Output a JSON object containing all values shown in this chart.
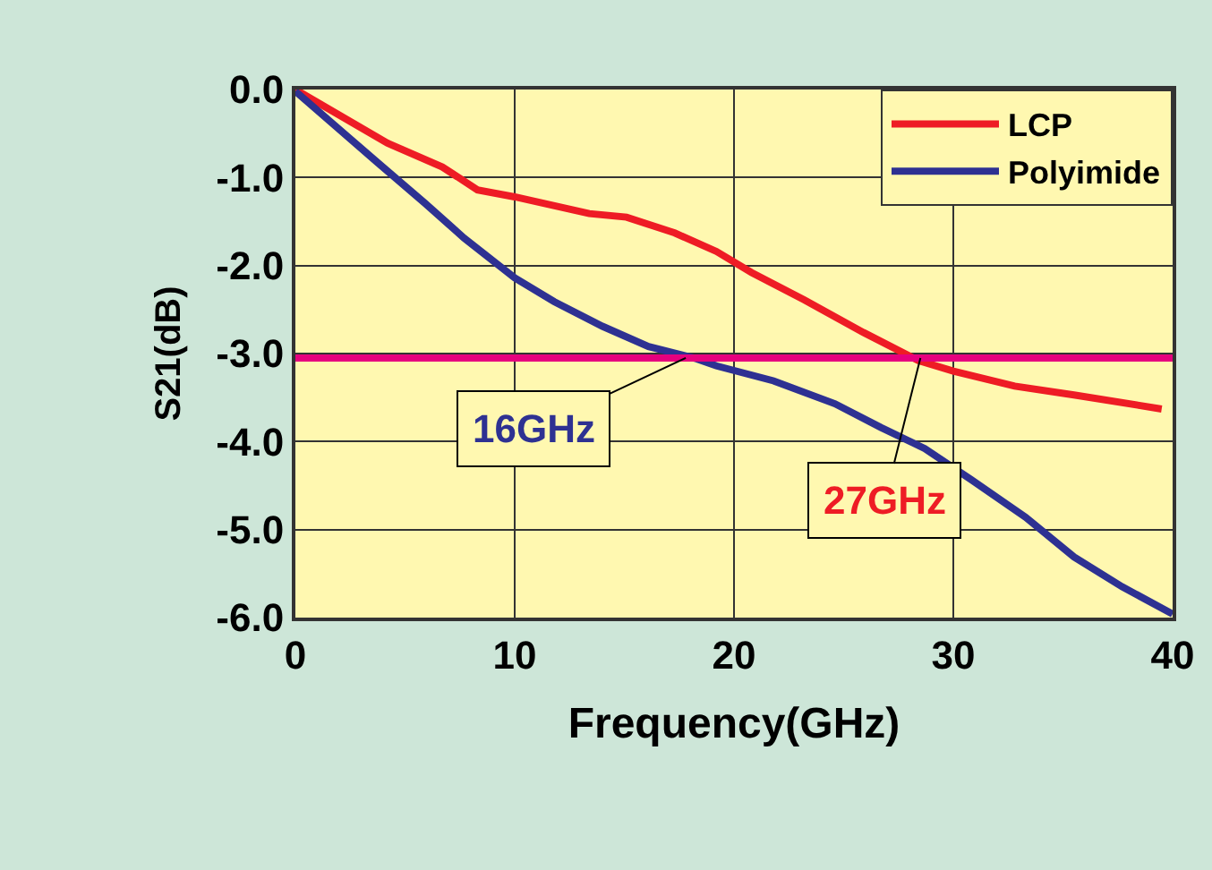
{
  "chart_data": {
    "type": "line",
    "xlabel": "Frequency(GHz)",
    "ylabel": "S21(dB)",
    "xlim": [
      0,
      40
    ],
    "xticks": [
      0,
      10,
      20,
      30,
      40
    ],
    "ylim": [
      -6,
      0
    ],
    "yticks": [
      {
        "value": 0,
        "label": "0.0"
      },
      {
        "value": -1,
        "label": "-1.0"
      },
      {
        "value": -2,
        "label": "-2.0"
      },
      {
        "value": -3,
        "label": "-3.0"
      },
      {
        "value": -4,
        "label": "-4.0"
      },
      {
        "value": -5,
        "label": "-5.0"
      },
      {
        "value": -6,
        "label": "-6.0"
      }
    ],
    "grid": true,
    "legend": "top right",
    "marker": "none",
    "line_style": "solid",
    "series": [
      {
        "name": "LCP",
        "color": "#ee1c25",
        "x": [
          0,
          4.2,
          6.7,
          8.3,
          10,
          13.4,
          15.1,
          17.3,
          19.2,
          20.8,
          23.2,
          25.9,
          28.4,
          30,
          32.8,
          35.5,
          39.5
        ],
        "values": [
          0,
          -0.61,
          -0.88,
          -1.14,
          -1.22,
          -1.41,
          -1.45,
          -1.63,
          -1.84,
          -2.08,
          -2.39,
          -2.76,
          -3.08,
          -3.2,
          -3.37,
          -3.47,
          -3.63
        ]
      },
      {
        "name": "Polyimide",
        "color": "#2e3192",
        "x": [
          0,
          1.8,
          3.7,
          5.9,
          7.7,
          10,
          11.8,
          14,
          16.1,
          18.3,
          19.2,
          21.8,
          24.6,
          26.7,
          28.7,
          30.8,
          33.3,
          35.5,
          37.7,
          40
        ],
        "values": [
          -0.02,
          -0.41,
          -0.82,
          -1.29,
          -1.69,
          -2.14,
          -2.41,
          -2.69,
          -2.92,
          -3.06,
          -3.14,
          -3.31,
          -3.57,
          -3.84,
          -4.08,
          -4.43,
          -4.86,
          -5.31,
          -5.65,
          -5.96
        ]
      }
    ],
    "ref_lines": [
      {
        "axis": "y",
        "value": -3.05,
        "color": "#e6007e"
      }
    ],
    "annotations": [
      {
        "text": "16GHz",
        "x": 17.8,
        "y": -3.05
      },
      {
        "text": "27GHz",
        "x": 28.5,
        "y": -3.05
      }
    ]
  }
}
